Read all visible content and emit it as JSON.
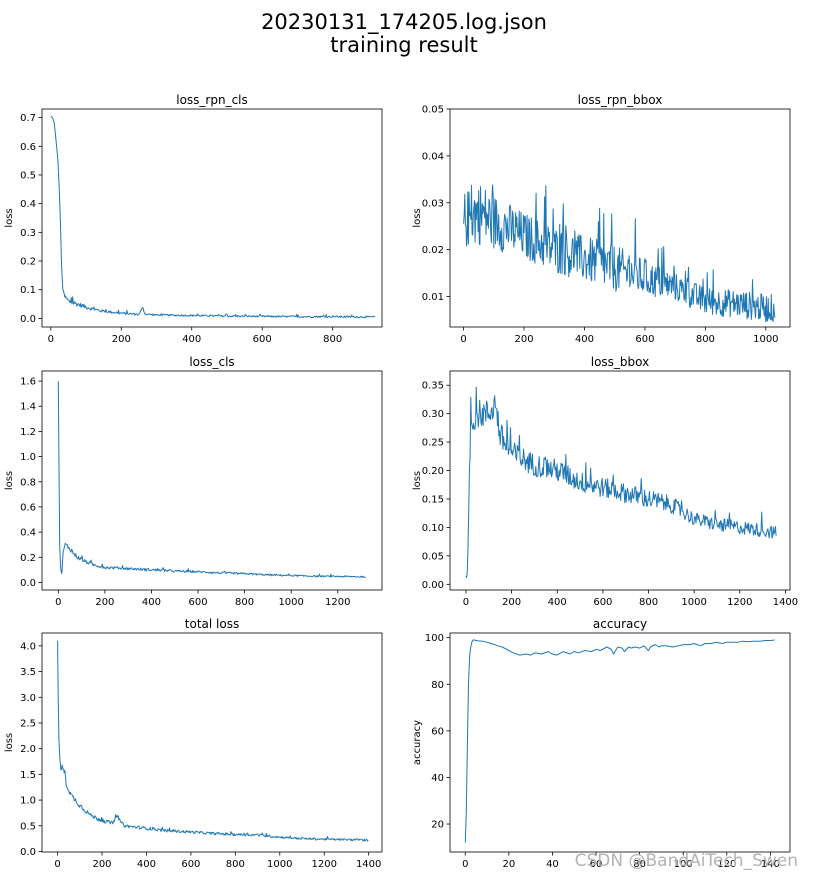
{
  "figure": {
    "title_line1": "20230131_174205.log.json",
    "title_line2": "training result",
    "watermark": "CSDN @BandAiTech_Swen",
    "line_color": "#1f77b4"
  },
  "chart_data": [
    {
      "id": "loss_rpn_cls",
      "type": "line",
      "title": "loss_rpn_cls",
      "xlabel": "",
      "ylabel": "loss",
      "xlim": [
        -25,
        940
      ],
      "ylim": [
        -0.03,
        0.73
      ],
      "xticks": [
        0,
        200,
        400,
        600,
        800
      ],
      "yticks": [
        0.0,
        0.1,
        0.2,
        0.3,
        0.4,
        0.5,
        0.6,
        0.7
      ],
      "ytick_decimals": 1,
      "series": [
        {
          "x": [
            0,
            5,
            10,
            15,
            20,
            25,
            28,
            30,
            33,
            35,
            40,
            45,
            50,
            60,
            70,
            80,
            100,
            120,
            150,
            200,
            250,
            262,
            265,
            270,
            300,
            400,
            500,
            600,
            700,
            800,
            900,
            920
          ],
          "y": [
            0.705,
            0.7,
            0.68,
            0.62,
            0.55,
            0.42,
            0.3,
            0.2,
            0.12,
            0.09,
            0.075,
            0.068,
            0.06,
            0.055,
            0.052,
            0.048,
            0.04,
            0.032,
            0.025,
            0.018,
            0.014,
            0.04,
            0.02,
            0.015,
            0.012,
            0.01,
            0.008,
            0.007,
            0.006,
            0.006,
            0.005,
            0.005
          ],
          "noise": [
            0,
            0,
            0,
            0,
            0,
            0,
            0,
            0,
            0.006,
            0.008,
            0.01,
            0.01,
            0.01,
            0.01,
            0.009,
            0.008,
            0.007,
            0.006,
            0.005,
            0.004,
            0.004,
            0.004,
            0.004,
            0.003,
            0.003,
            0.003,
            0.003,
            0.003,
            0.003,
            0.003,
            0.003,
            0.003
          ],
          "step": 2
        }
      ]
    },
    {
      "id": "loss_rpn_bbox",
      "type": "line",
      "title": "loss_rpn_bbox",
      "xlabel": "",
      "ylabel": "loss",
      "xlim": [
        -45,
        1080
      ],
      "ylim": [
        0.0035,
        0.05
      ],
      "xticks": [
        0,
        200,
        400,
        600,
        800,
        1000
      ],
      "yticks": [
        0.01,
        0.02,
        0.03,
        0.04,
        0.05
      ],
      "ytick_decimals": 2,
      "series": [
        {
          "x": [
            0,
            50,
            100,
            200,
            300,
            400,
            500,
            600,
            700,
            800,
            900,
            1000,
            1030
          ],
          "y": [
            0.026,
            0.028,
            0.026,
            0.023,
            0.02,
            0.018,
            0.016,
            0.014,
            0.012,
            0.009,
            0.0085,
            0.0075,
            0.0075
          ],
          "noise": [
            0.006,
            0.007,
            0.006,
            0.005,
            0.005,
            0.005,
            0.005,
            0.004,
            0.003,
            0.003,
            0.003,
            0.003,
            0.003
          ],
          "step": 2
        }
      ]
    },
    {
      "id": "loss_cls",
      "type": "line",
      "title": "loss_cls",
      "xlabel": "",
      "ylabel": "loss",
      "xlim": [
        -70,
        1390
      ],
      "ylim": [
        -0.06,
        1.68
      ],
      "xticks": [
        0,
        200,
        400,
        600,
        800,
        1000,
        1200
      ],
      "yticks": [
        0.0,
        0.2,
        0.4,
        0.6,
        0.8,
        1.0,
        1.2,
        1.4,
        1.6
      ],
      "ytick_decimals": 1,
      "series": [
        {
          "x": [
            0,
            3,
            6,
            10,
            15,
            20,
            25,
            30,
            50,
            70,
            100,
            150,
            200,
            300,
            400,
            500,
            600,
            700,
            800,
            900,
            1000,
            1100,
            1200,
            1300,
            1320
          ],
          "y": [
            1.6,
            0.9,
            0.3,
            0.1,
            0.07,
            0.22,
            0.28,
            0.3,
            0.27,
            0.22,
            0.18,
            0.14,
            0.12,
            0.11,
            0.1,
            0.09,
            0.085,
            0.075,
            0.07,
            0.06,
            0.055,
            0.05,
            0.048,
            0.045,
            0.045
          ],
          "noise": [
            0,
            0,
            0,
            0,
            0,
            0.02,
            0.02,
            0.02,
            0.02,
            0.02,
            0.015,
            0.012,
            0.012,
            0.01,
            0.01,
            0.009,
            0.008,
            0.008,
            0.007,
            0.007,
            0.006,
            0.006,
            0.006,
            0.006,
            0.006
          ],
          "step": 3
        }
      ]
    },
    {
      "id": "loss_bbox",
      "type": "line",
      "title": "loss_bbox",
      "xlabel": "",
      "ylabel": "loss",
      "xlim": [
        -70,
        1420
      ],
      "ylim": [
        -0.01,
        0.375
      ],
      "xticks": [
        0,
        200,
        400,
        600,
        800,
        1000,
        1200,
        1400
      ],
      "yticks": [
        0.0,
        0.05,
        0.1,
        0.15,
        0.2,
        0.25,
        0.3,
        0.35
      ],
      "ytick_decimals": 2,
      "series": [
        {
          "x": [
            0,
            5,
            10,
            15,
            20,
            30,
            50,
            100,
            130,
            150,
            200,
            300,
            400,
            500,
            600,
            700,
            800,
            900,
            1000,
            1100,
            1200,
            1300,
            1360
          ],
          "y": [
            0.015,
            0.01,
            0.08,
            0.2,
            0.27,
            0.29,
            0.3,
            0.3,
            0.32,
            0.26,
            0.23,
            0.21,
            0.2,
            0.18,
            0.17,
            0.16,
            0.15,
            0.14,
            0.115,
            0.105,
            0.1,
            0.095,
            0.09
          ],
          "noise": [
            0,
            0,
            0,
            0.01,
            0.025,
            0.025,
            0.025,
            0.025,
            0.025,
            0.025,
            0.022,
            0.02,
            0.02,
            0.018,
            0.018,
            0.017,
            0.017,
            0.015,
            0.012,
            0.012,
            0.012,
            0.012,
            0.012
          ],
          "step": 3
        }
      ]
    },
    {
      "id": "total_loss",
      "type": "line",
      "title": "total loss",
      "xlabel": "",
      "ylabel": "loss",
      "xlim": [
        -70,
        1460
      ],
      "ylim": [
        -0.01,
        4.25
      ],
      "xticks": [
        0,
        200,
        400,
        600,
        800,
        1000,
        1200,
        1400
      ],
      "yticks": [
        0.0,
        0.5,
        1.0,
        1.5,
        2.0,
        2.5,
        3.0,
        3.5,
        4.0
      ],
      "ytick_decimals": 1,
      "series": [
        {
          "x": [
            0,
            3,
            6,
            10,
            15,
            20,
            30,
            40,
            50,
            60,
            80,
            100,
            150,
            200,
            250,
            270,
            280,
            300,
            400,
            500,
            600,
            700,
            800,
            900,
            1000,
            1100,
            1200,
            1300,
            1400
          ],
          "y": [
            4.1,
            3.0,
            2.2,
            1.8,
            1.6,
            1.65,
            1.55,
            1.3,
            1.2,
            1.1,
            1.0,
            0.9,
            0.7,
            0.6,
            0.55,
            0.7,
            0.6,
            0.5,
            0.45,
            0.4,
            0.38,
            0.35,
            0.33,
            0.32,
            0.28,
            0.25,
            0.24,
            0.23,
            0.22
          ],
          "noise": [
            0,
            0,
            0,
            0,
            0.05,
            0.05,
            0.05,
            0.05,
            0.05,
            0.05,
            0.05,
            0.05,
            0.04,
            0.04,
            0.035,
            0.03,
            0.03,
            0.03,
            0.03,
            0.025,
            0.025,
            0.025,
            0.025,
            0.025,
            0.02,
            0.02,
            0.02,
            0.02,
            0.02
          ],
          "step": 3
        }
      ]
    },
    {
      "id": "accuracy",
      "type": "line",
      "title": "accuracy",
      "xlabel": "",
      "ylabel": "accuracy",
      "xlim": [
        -7,
        149
      ],
      "ylim": [
        8,
        102
      ],
      "xticks": [
        0,
        20,
        40,
        60,
        80,
        100,
        120,
        140
      ],
      "yticks": [
        20,
        40,
        60,
        80,
        100
      ],
      "ytick_decimals": 0,
      "series": [
        {
          "x": [
            0,
            0.5,
            1,
            1.5,
            2,
            2.5,
            3,
            3.5,
            4,
            5,
            6,
            8,
            10,
            12,
            15,
            17,
            20,
            22,
            25,
            28,
            30,
            32,
            35,
            38,
            40,
            42,
            45,
            48,
            50,
            52,
            55,
            58,
            60,
            62,
            65,
            67,
            68,
            70,
            72,
            73,
            75,
            76,
            78,
            80,
            82,
            84,
            85,
            87,
            89,
            90,
            92,
            95,
            98,
            100,
            103,
            105,
            108,
            110,
            113,
            115,
            118,
            120,
            122,
            125,
            127,
            130,
            132,
            135,
            138,
            140,
            142
          ],
          "y": [
            12,
            25,
            55,
            80,
            92,
            96,
            98,
            99,
            99,
            98.8,
            98.6,
            98.5,
            98,
            97.5,
            96.5,
            96,
            94.5,
            93.5,
            92.5,
            93,
            92.5,
            93.5,
            93,
            94,
            93,
            92.5,
            94,
            93,
            94,
            93.5,
            94.5,
            94,
            95,
            94.5,
            96,
            95,
            93,
            96,
            95.5,
            94,
            96,
            95.5,
            96,
            95.5,
            96.5,
            94.5,
            96,
            97,
            96,
            96.5,
            96.5,
            96,
            96.5,
            97,
            97,
            97.5,
            96.5,
            97.5,
            97.5,
            98,
            97.5,
            98,
            98,
            98,
            98.5,
            98.3,
            98.5,
            98.5,
            98.8,
            98.8,
            99
          ],
          "noise": [
            0,
            0,
            0,
            0,
            0,
            0,
            0,
            0,
            0,
            0,
            0,
            0,
            0,
            0,
            0,
            0,
            0,
            0,
            0,
            0,
            0,
            0,
            0,
            0,
            0,
            0,
            0,
            0,
            0,
            0,
            0,
            0,
            0,
            0,
            0,
            0,
            0,
            0,
            0,
            0,
            0,
            0,
            0,
            0,
            0,
            0,
            0,
            0,
            0,
            0,
            0,
            0,
            0,
            0,
            0,
            0,
            0,
            0,
            0,
            0,
            0,
            0,
            0,
            0,
            0,
            0,
            0,
            0,
            0,
            0,
            0
          ],
          "step": 0
        }
      ]
    }
  ]
}
